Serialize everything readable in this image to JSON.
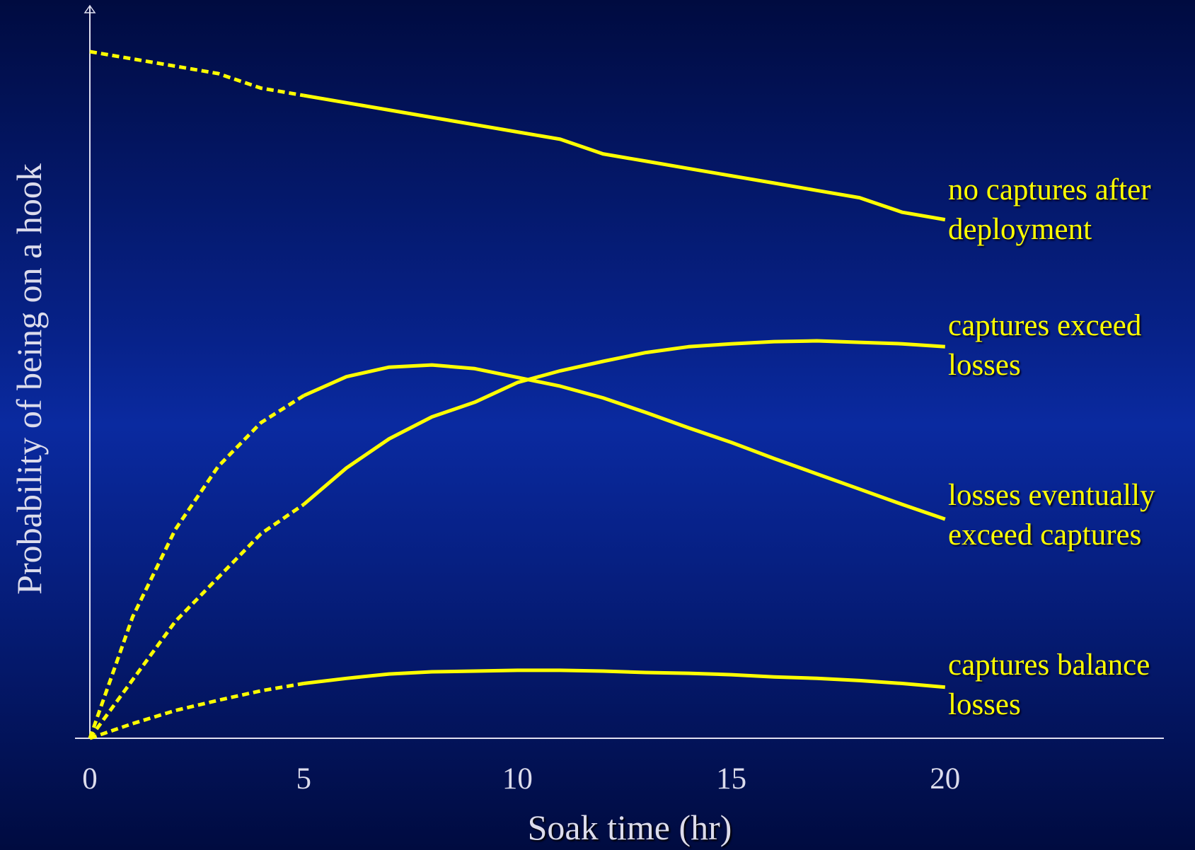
{
  "chart_data": {
    "type": "line",
    "x_label": "Soak time (hr)",
    "y_label": "Probability of being on a hook",
    "x": [
      0,
      1,
      2,
      3,
      4,
      5,
      6,
      7,
      8,
      9,
      10,
      11,
      12,
      13,
      14,
      15,
      16,
      17,
      18,
      19,
      20
    ],
    "xlim": [
      0,
      25
    ],
    "xticks": [
      0,
      5,
      10,
      15,
      20
    ],
    "ylim": [
      0,
      1
    ],
    "dashed_until_x": 5,
    "series": [
      {
        "name": "no captures after deployment",
        "color": "#ffff00",
        "values": [
          0.94,
          0.93,
          0.92,
          0.91,
          0.89,
          0.88,
          0.87,
          0.86,
          0.85,
          0.84,
          0.83,
          0.82,
          0.8,
          0.79,
          0.78,
          0.77,
          0.76,
          0.75,
          0.74,
          0.72,
          0.71
        ]
      },
      {
        "name": "captures exceed losses",
        "color": "#ffff00",
        "values": [
          0,
          0.08,
          0.16,
          0.22,
          0.28,
          0.32,
          0.37,
          0.41,
          0.44,
          0.46,
          0.487,
          0.503,
          0.516,
          0.528,
          0.536,
          0.54,
          0.543,
          0.544,
          0.542,
          0.54,
          0.536
        ]
      },
      {
        "name": "losses eventually exceed captures",
        "color": "#ffff00",
        "values": [
          0,
          0.166,
          0.286,
          0.372,
          0.432,
          0.469,
          0.495,
          0.508,
          0.511,
          0.506,
          0.494,
          0.482,
          0.466,
          0.446,
          0.425,
          0.405,
          0.383,
          0.362,
          0.341,
          0.32,
          0.3
        ]
      },
      {
        "name": "captures balance losses",
        "color": "#ffff00",
        "values": [
          0,
          0.02,
          0.038,
          0.052,
          0.065,
          0.075,
          0.082,
          0.088,
          0.091,
          0.092,
          0.093,
          0.093,
          0.092,
          0.09,
          0.089,
          0.087,
          0.084,
          0.082,
          0.079,
          0.075,
          0.07
        ]
      }
    ]
  }
}
